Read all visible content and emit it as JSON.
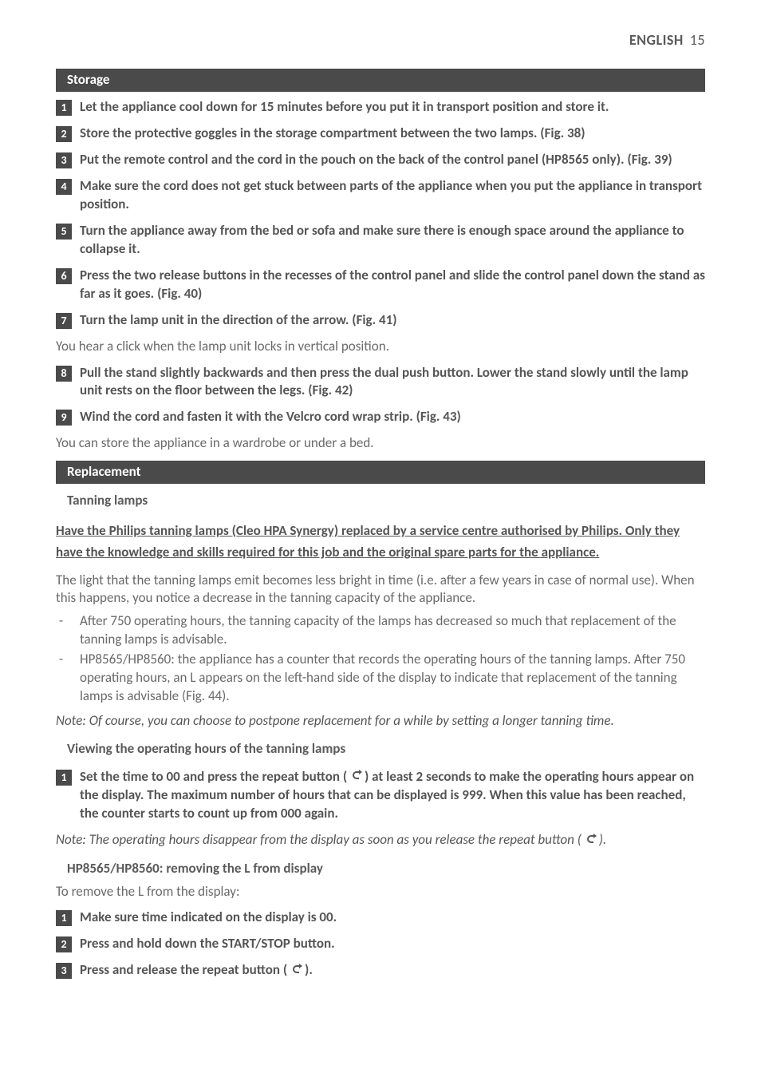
{
  "header": {
    "title": "ENGLISH",
    "page": "15"
  },
  "sections": {
    "storage": {
      "title": "Storage",
      "steps": [
        {
          "n": "1",
          "text": "Let the appliance cool down for 15 minutes before you put it in transport position and store it."
        },
        {
          "n": "2",
          "text": "Store the protective goggles in the storage compartment between the two lamps.  (Fig. 38)"
        },
        {
          "n": "3",
          "text": "Put the remote control and the cord in the pouch on the back of the control panel (HP8565 only).  (Fig. 39)"
        },
        {
          "n": "4",
          "text": "Make sure the cord does not get stuck between parts of the appliance when you put the appliance in transport position."
        },
        {
          "n": "5",
          "text": "Turn the appliance away from the bed or sofa and make sure there is enough space around the appliance to collapse it."
        },
        {
          "n": "6",
          "text": "Press the two release buttons in the recesses of the control panel and slide the control panel down the stand as far as it goes.  (Fig. 40)"
        },
        {
          "n": "7",
          "text": "Turn the lamp unit in the direction of the arrow.  (Fig. 41)",
          "after": "You hear a click when the lamp unit locks in vertical position."
        },
        {
          "n": "8",
          "text": "Pull the stand slightly backwards and then press the dual push button. Lower the stand slowly until the lamp unit rests on the floor between the legs.  (Fig. 42)"
        },
        {
          "n": "9",
          "text": "Wind the cord and fasten it with the Velcro cord wrap strip.  (Fig. 43)",
          "after": "You can store the appliance in a wardrobe or under a bed."
        }
      ]
    },
    "replacement": {
      "title": "Replacement",
      "tanning": {
        "heading": "Tanning lamps",
        "underlined": "Have the Philips tanning lamps (Cleo HPA Synergy) replaced by a service centre authorised by Philips. Only they have the knowledge and skills required for this job and the original spare parts for the appliance.",
        "para": "The light that the tanning lamps emit becomes less bright in time (i.e. after a few years in case of normal use). When this happens, you notice a decrease in the tanning capacity of the appliance.",
        "bullets": [
          "After 750 operating hours, the tanning capacity of the lamps has decreased so much that replacement of the tanning lamps is advisable.",
          "HP8565/HP8560: the appliance has a counter that records the operating hours of the tanning lamps. After 750 operating hours, an L appears on the left-hand side of the display to indicate that replacement of the tanning lamps is advisable (Fig. 44)."
        ],
        "note": "Note: Of course, you can choose to postpone replacement for a while by setting a longer tanning time."
      },
      "viewing": {
        "heading": "Viewing the operating hours of the tanning lamps",
        "step1_pre": "Set the time to 00 and press the repeat button ( ",
        "step1_post": ") at least 2 seconds to make the operating hours appear on the display. The maximum number of hours that can be displayed is 999. When this value has been reached, the counter starts to count up from 000 again.",
        "note_pre": "Note: The operating hours disappear from the display as soon as you release the repeat button ( ",
        "note_post": ")."
      },
      "removeL": {
        "heading": "HP8565/HP8560: removing the L from display",
        "intro": "To remove the L from the display:",
        "steps": [
          {
            "n": "1",
            "text": "Make sure time indicated on the display is 00."
          },
          {
            "n": "2",
            "text": "Press and hold down the START/STOP button."
          }
        ],
        "step3_pre": "Press and release the repeat button ( ",
        "step3_post": ")."
      }
    }
  }
}
